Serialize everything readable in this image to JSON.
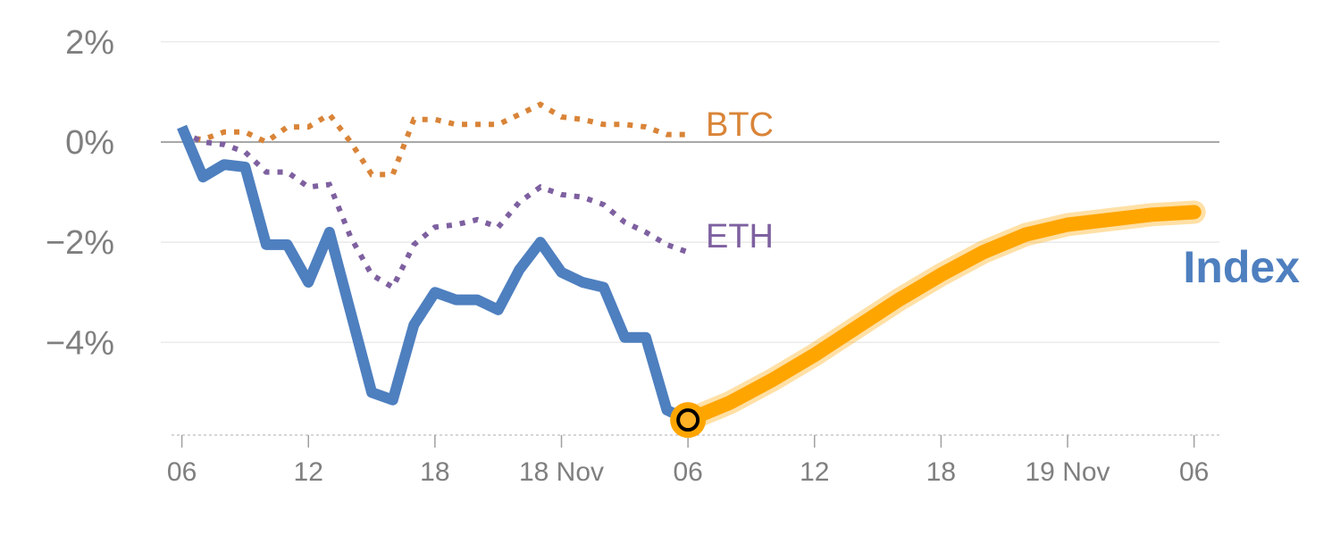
{
  "chart_data": {
    "type": "line",
    "y_unit": "%",
    "ylim": [
      -5.85,
      2.3
    ],
    "xlim": [
      -1,
      49.2
    ],
    "y_ticks": [
      {
        "value": 2,
        "label": "2%"
      },
      {
        "value": 0,
        "label": "0%"
      },
      {
        "value": -2,
        "label": "−2%"
      },
      {
        "value": -4,
        "label": "−4%"
      }
    ],
    "x_ticks": [
      {
        "value": 0,
        "label": "06"
      },
      {
        "value": 6,
        "label": "12"
      },
      {
        "value": 12,
        "label": "18"
      },
      {
        "value": 18,
        "label": "18 Nov"
      },
      {
        "value": 24,
        "label": "06"
      },
      {
        "value": 30,
        "label": "12"
      },
      {
        "value": 36,
        "label": "18"
      },
      {
        "value": 42,
        "label": "19 Nov"
      },
      {
        "value": 48,
        "label": "06"
      }
    ],
    "grid": true,
    "colors": {
      "index": "#4e7fbf",
      "btc": "#d98438",
      "eth": "#7e60a0",
      "forecast": "#ffa500",
      "grid": "#e6e6e6",
      "zero_line": "#8c8c8c",
      "tick_text": "#7f7f7f"
    },
    "series": [
      {
        "name": "Index",
        "style": "solid",
        "x": [
          0,
          1,
          2,
          3,
          4,
          5,
          6,
          7,
          8,
          9,
          10,
          11,
          12,
          13,
          14,
          15,
          16,
          17,
          18,
          19,
          20,
          21,
          22,
          23,
          24
        ],
        "values": [
          0.3,
          -0.7,
          -0.45,
          -0.5,
          -2.05,
          -2.05,
          -2.8,
          -1.8,
          -3.4,
          -5.0,
          -5.15,
          -3.65,
          -3.0,
          -3.15,
          -3.15,
          -3.35,
          -2.55,
          -2.0,
          -2.6,
          -2.8,
          -2.9,
          -3.9,
          -3.9,
          -5.35,
          -5.55
        ]
      },
      {
        "name": "BTC",
        "style": "dotted",
        "x": [
          0,
          1,
          2,
          3,
          4,
          5,
          6,
          7,
          8,
          9,
          10,
          11,
          12,
          13,
          14,
          15,
          16,
          17,
          18,
          19,
          20,
          21,
          22,
          23,
          24
        ],
        "values": [
          0.1,
          0.05,
          0.2,
          0.2,
          0.0,
          0.3,
          0.3,
          0.55,
          0.0,
          -0.65,
          -0.65,
          0.45,
          0.45,
          0.35,
          0.35,
          0.35,
          0.55,
          0.75,
          0.5,
          0.45,
          0.35,
          0.35,
          0.3,
          0.15,
          0.15
        ]
      },
      {
        "name": "ETH",
        "style": "dotted",
        "x": [
          0,
          1,
          2,
          3,
          4,
          5,
          6,
          7,
          8,
          9,
          10,
          11,
          12,
          13,
          14,
          15,
          16,
          17,
          18,
          19,
          20,
          21,
          22,
          23,
          24
        ],
        "values": [
          0.2,
          0.0,
          -0.05,
          -0.2,
          -0.6,
          -0.6,
          -0.9,
          -0.85,
          -1.9,
          -2.65,
          -2.9,
          -2.05,
          -1.7,
          -1.65,
          -1.55,
          -1.7,
          -1.2,
          -0.9,
          -1.05,
          -1.1,
          -1.25,
          -1.6,
          -1.8,
          -2.05,
          -2.2
        ]
      },
      {
        "name": "",
        "role": "forecast",
        "style": "thick",
        "x": [
          24,
          26,
          28,
          30,
          32,
          34,
          36,
          38,
          40,
          42,
          44,
          46,
          48
        ],
        "values": [
          -5.55,
          -5.2,
          -4.75,
          -4.25,
          -3.7,
          -3.15,
          -2.65,
          -2.2,
          -1.85,
          -1.65,
          -1.55,
          -1.45,
          -1.4
        ]
      }
    ],
    "marker": {
      "x": 24,
      "y": -5.55
    }
  }
}
